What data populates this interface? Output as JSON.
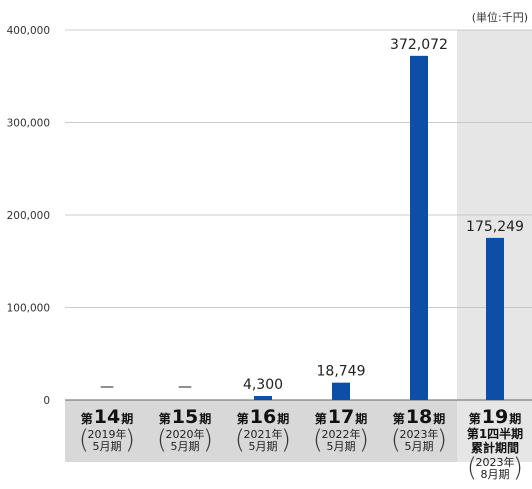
{
  "unit_label": "(単位:千円)",
  "chart_data": {
    "type": "bar",
    "title": "",
    "xlabel": "",
    "ylabel": "",
    "ylim": [
      0,
      400000
    ],
    "y_ticks": [
      "0",
      "100,000",
      "200,000",
      "300,000",
      "400,000"
    ],
    "y_tick_values": [
      0,
      100000,
      200000,
      300000,
      400000
    ],
    "grid": true,
    "bar_color": "#0d4ea6",
    "highlight_bg": "#e6e6e6",
    "category_bg": "#d8d8d8",
    "categories": [
      {
        "pre": "第",
        "num": "14",
        "post": "期",
        "extra": "",
        "year": "2019年",
        "month": "5月期"
      },
      {
        "pre": "第",
        "num": "15",
        "post": "期",
        "extra": "",
        "year": "2020年",
        "month": "5月期"
      },
      {
        "pre": "第",
        "num": "16",
        "post": "期",
        "extra": "",
        "year": "2021年",
        "month": "5月期"
      },
      {
        "pre": "第",
        "num": "17",
        "post": "期",
        "extra": "",
        "year": "2022年",
        "month": "5月期"
      },
      {
        "pre": "第",
        "num": "18",
        "post": "期",
        "extra": "",
        "year": "2023年",
        "month": "5月期"
      },
      {
        "pre": "第",
        "num": "19",
        "post": "期",
        "extra": "第1四半期\n累計期間",
        "year": "2023年",
        "month": "8月期"
      }
    ],
    "values": [
      null,
      null,
      4300,
      18749,
      372072,
      175249
    ],
    "value_labels": [
      "—",
      "—",
      "4,300",
      "18,749",
      "372,072",
      "175,249"
    ]
  }
}
